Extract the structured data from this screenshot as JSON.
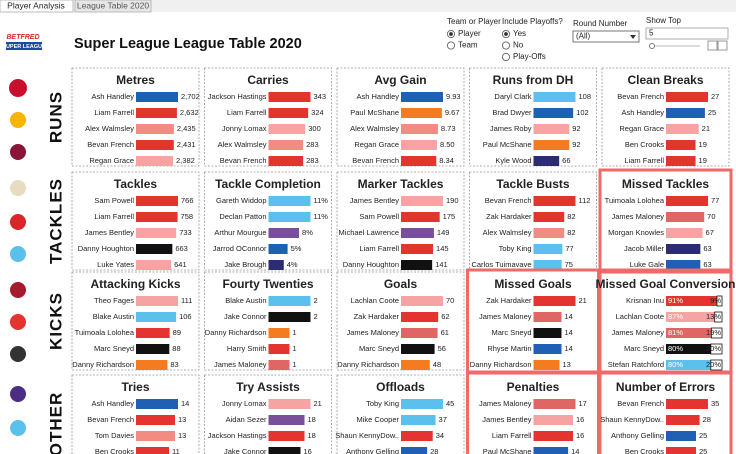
{
  "tabs": [
    "Player Analysis",
    "League Table 2020"
  ],
  "header": {
    "logo_top": "BETFRED",
    "logo_bottom": "SUPER LEAGUE",
    "title": "Super League League Table 2020"
  },
  "controls": {
    "team_or_player": {
      "label": "Team or Player",
      "options": [
        "Player",
        "Team"
      ],
      "selected": 0
    },
    "playoffs": {
      "label": "Include Playoffs?",
      "options": [
        "Yes",
        "No",
        "Play-Offs"
      ],
      "selected": 0
    },
    "round": {
      "label": "Round Number",
      "value": "(All)"
    },
    "show_top": {
      "label": "Show Top",
      "value": 5
    }
  },
  "sections": [
    "RUNS",
    "TACKLES",
    "KICKS",
    "OTHER"
  ],
  "chart_data": [
    {
      "type": "bar",
      "title": "Metres",
      "categories": [
        "Ash Handley",
        "Liam Farrell",
        "Alex Walmsley",
        "Bevan French",
        "Regan Grace"
      ],
      "values": [
        2702,
        2632,
        2435,
        2431,
        2382
      ],
      "value_labels": [
        "2,702",
        "2,632",
        "2,435",
        "2,431",
        "2,382"
      ],
      "colors": [
        "#1f5fb4",
        "#e3342f",
        "#f28b82",
        "#e3342f",
        "#f5a3a3"
      ]
    },
    {
      "type": "bar",
      "title": "Carries",
      "categories": [
        "Jackson Hastings",
        "Liam Farrell",
        "Jonny Lomax",
        "Alex Walmsley",
        "Bevan French"
      ],
      "values": [
        343,
        324,
        300,
        283,
        283
      ],
      "colors": [
        "#e3342f",
        "#e3342f",
        "#f5a3a3",
        "#f28b82",
        "#e3342f"
      ]
    },
    {
      "type": "bar",
      "title": "Avg Gain",
      "categories": [
        "Ash Handley",
        "Paul McShane",
        "Alex Walmsley",
        "Regan Grace",
        "Bevan French"
      ],
      "values": [
        9.93,
        9.67,
        8.73,
        8.5,
        8.34
      ],
      "value_labels": [
        "9.93",
        "9.67",
        "8.73",
        "8.50",
        "8.34"
      ],
      "colors": [
        "#1f5fb4",
        "#f47b20",
        "#f28b82",
        "#f5a3a3",
        "#e3342f"
      ]
    },
    {
      "type": "bar",
      "title": "Runs from DH",
      "categories": [
        "Daryl Clark",
        "Brad Dwyer",
        "James Roby",
        "Paul McShane",
        "Kyle Wood"
      ],
      "values": [
        108,
        102,
        92,
        92,
        66
      ],
      "colors": [
        "#5bc0eb",
        "#1f5fb4",
        "#f5a3a3",
        "#f47b20",
        "#2b2d6e"
      ]
    },
    {
      "type": "bar",
      "title": "Clean Breaks",
      "categories": [
        "Bevan French",
        "Ash Handley",
        "Regan Grace",
        "Ben Crooks",
        "Liam Farrell"
      ],
      "values": [
        27,
        25,
        21,
        19,
        19
      ],
      "colors": [
        "#e3342f",
        "#1f5fb4",
        "#f5a3a3",
        "#e3342f",
        "#e3342f"
      ]
    },
    {
      "type": "bar",
      "title": "Tackles",
      "categories": [
        "Sam Powell",
        "Liam Farrell",
        "James Bentley",
        "Danny Houghton",
        "Luke Yates"
      ],
      "values": [
        766,
        758,
        733,
        663,
        641
      ],
      "colors": [
        "#e3342f",
        "#e3342f",
        "#f5a3a3",
        "#111111",
        "#f5a3a3"
      ]
    },
    {
      "type": "bar",
      "title": "Tackle Completion",
      "categories": [
        "Gareth Widdop",
        "Declan Patton",
        "Arthur Mourgue",
        "Jarrod OConnor",
        "Jake Brough"
      ],
      "values": [
        11,
        11,
        8,
        5,
        4
      ],
      "value_labels": [
        "11%",
        "11%",
        "8%",
        "5%",
        "4%"
      ],
      "colors": [
        "#5bc0eb",
        "#5bc0eb",
        "#7a4f9a",
        "#1f5fb4",
        "#2b2d6e"
      ]
    },
    {
      "type": "bar",
      "title": "Marker Tackles",
      "categories": [
        "James Bentley",
        "Sam Powell",
        "Michael Lawrence",
        "Liam Farrell",
        "Danny Houghton"
      ],
      "values": [
        190,
        175,
        149,
        145,
        141
      ],
      "colors": [
        "#f5a3a3",
        "#e3342f",
        "#7a4f9a",
        "#e3342f",
        "#111111"
      ]
    },
    {
      "type": "bar",
      "title": "Tackle Busts",
      "categories": [
        "Bevan French",
        "Zak Hardaker",
        "Alex Walmsley",
        "Toby King",
        "Carlos Tuimavave"
      ],
      "values": [
        112,
        82,
        82,
        77,
        75
      ],
      "colors": [
        "#e3342f",
        "#e3342f",
        "#f28b82",
        "#5bc0eb",
        "#5bc0eb"
      ]
    },
    {
      "type": "bar",
      "title": "Missed Tackles",
      "highlight": true,
      "categories": [
        "Tuimoala Lolohea",
        "James Maloney",
        "Morgan Knowles",
        "Jacob Miller",
        "Luke Gale"
      ],
      "values": [
        77,
        70,
        67,
        63,
        63
      ],
      "colors": [
        "#e3342f",
        "#e06666",
        "#f5a3a3",
        "#2b2d6e",
        "#1f5fb4"
      ]
    },
    {
      "type": "bar",
      "title": "Attacking Kicks",
      "categories": [
        "Theo Fages",
        "Blake Austin",
        "Tuimoala Lolohea",
        "Marc Sneyd",
        "Danny Richardson"
      ],
      "values": [
        111,
        106,
        89,
        88,
        83
      ],
      "colors": [
        "#f5a3a3",
        "#5bc0eb",
        "#e3342f",
        "#111111",
        "#f47b20"
      ]
    },
    {
      "type": "bar",
      "title": "Fourty Twenties",
      "categories": [
        "Blake Austin",
        "Jake Connor",
        "Danny Richardson",
        "Harry Smith",
        "James Maloney"
      ],
      "values": [
        2,
        2,
        1,
        1,
        1
      ],
      "colors": [
        "#5bc0eb",
        "#111111",
        "#f47b20",
        "#e3342f",
        "#e06666"
      ]
    },
    {
      "type": "bar",
      "title": "Goals",
      "categories": [
        "Lachlan Coote",
        "Zak Hardaker",
        "James Maloney",
        "Marc Sneyd",
        "Danny Richardson"
      ],
      "values": [
        70,
        62,
        61,
        56,
        48
      ],
      "colors": [
        "#f5a3a3",
        "#e3342f",
        "#e06666",
        "#111111",
        "#f47b20"
      ]
    },
    {
      "type": "bar",
      "title": "Missed Goals",
      "highlight": true,
      "categories": [
        "Zak Hardaker",
        "James Maloney",
        "Marc Sneyd",
        "Rhyse Martin",
        "Danny Richardson"
      ],
      "values": [
        21,
        14,
        14,
        14,
        13
      ],
      "colors": [
        "#e3342f",
        "#e06666",
        "#111111",
        "#1f5fb4",
        "#f47b20"
      ]
    },
    {
      "type": "stacked",
      "title": "Missed Goal Conversion",
      "highlight": true,
      "categories": [
        "Krisnan Inu",
        "Lachlan Coote",
        "James Maloney",
        "Marc Sneyd",
        "Stefan Ratchford"
      ],
      "series": [
        {
          "values": [
            91,
            87,
            81,
            80,
            80
          ],
          "value_labels": [
            "91%",
            "87%",
            "81%",
            "80%",
            "80%"
          ],
          "colors": [
            "#e3342f",
            "#f5a3a3",
            "#e06666",
            "#111111",
            "#5bc0eb"
          ]
        },
        {
          "values": [
            9,
            13,
            19,
            20,
            20
          ],
          "value_labels": [
            "9%",
            "13%",
            "19%",
            "20%",
            "20%"
          ],
          "color": "#ffffff"
        }
      ]
    },
    {
      "type": "bar",
      "title": "Tries",
      "categories": [
        "Ash Handley",
        "Bevan French",
        "Tom Davies",
        "Ben Crooks"
      ],
      "values": [
        14,
        13,
        13,
        11
      ],
      "colors": [
        "#1f5fb4",
        "#e3342f",
        "#f28b82",
        "#e3342f"
      ]
    },
    {
      "type": "bar",
      "title": "Try Assists",
      "categories": [
        "Jonny Lomax",
        "Aidan Sezer",
        "Jackson Hastings",
        "Jake Connor"
      ],
      "values": [
        21,
        18,
        18,
        16
      ],
      "colors": [
        "#f5a3a3",
        "#7a4f9a",
        "#e3342f",
        "#111111"
      ]
    },
    {
      "type": "bar",
      "title": "Offloads",
      "categories": [
        "Toby King",
        "Mike Cooper",
        "Shaun KennyDow..",
        "Anthony Gelling"
      ],
      "values": [
        45,
        37,
        34,
        28
      ],
      "colors": [
        "#5bc0eb",
        "#5bc0eb",
        "#e3342f",
        "#1f5fb4"
      ]
    },
    {
      "type": "bar",
      "title": "Penalties",
      "highlight": true,
      "categories": [
        "James Maloney",
        "James Bentley",
        "Liam Farrell",
        "Paul McShane"
      ],
      "values": [
        17,
        16,
        16,
        14
      ],
      "colors": [
        "#e06666",
        "#f5a3a3",
        "#e3342f",
        "#1f5fb4"
      ]
    },
    {
      "type": "bar",
      "title": "Number of Errors",
      "highlight": true,
      "categories": [
        "Bevan French",
        "Shaun KennyDow..",
        "Anthony Gelling",
        "Ben Crooks"
      ],
      "values": [
        35,
        28,
        25,
        25
      ],
      "colors": [
        "#e3342f",
        "#e3342f",
        "#1f5fb4",
        "#e3342f"
      ]
    }
  ]
}
